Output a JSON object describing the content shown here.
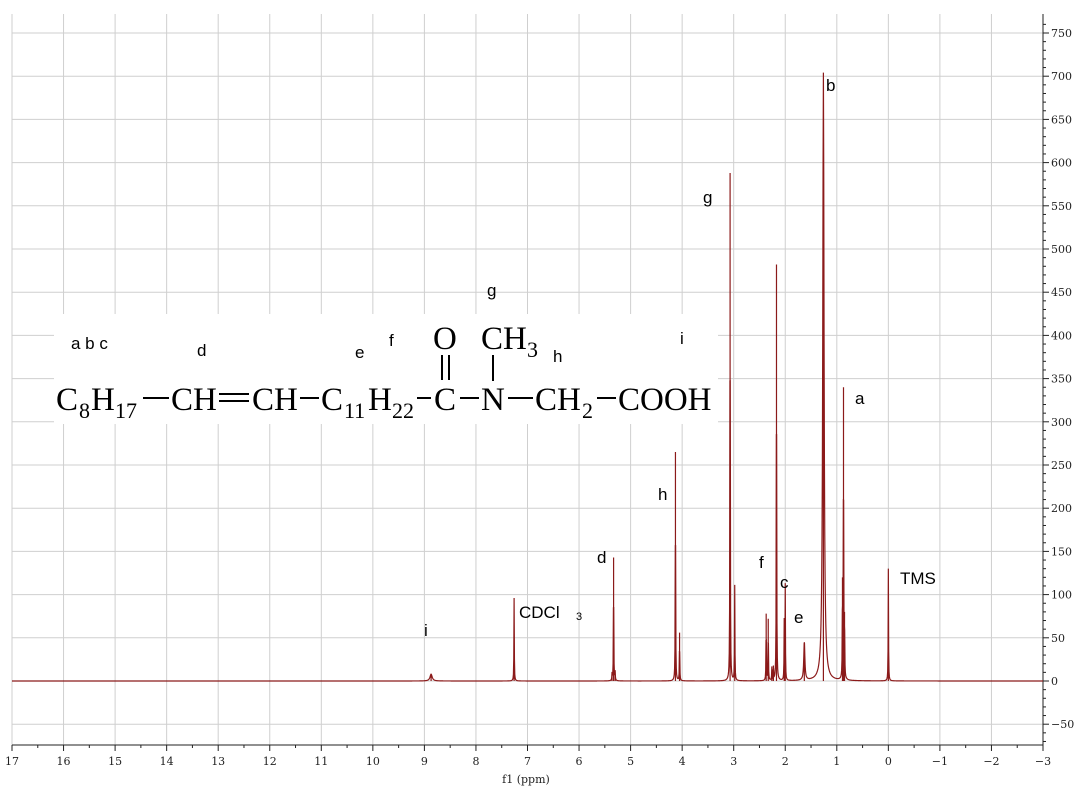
{
  "chart_data": {
    "type": "line",
    "title": "",
    "xlabel": "f1 (ppm)",
    "ylabel": "",
    "xlim": [
      17,
      -3
    ],
    "ylim": [
      -75,
      760
    ],
    "x_reversed": true,
    "grid": true,
    "line_color": "#8b1a1a",
    "x_ticks": [
      "17",
      "16",
      "15",
      "14",
      "13",
      "12",
      "11",
      "10",
      "9",
      "8",
      "7",
      "6",
      "5",
      "4",
      "3",
      "2",
      "1",
      "0",
      "−1",
      "−2",
      "−3"
    ],
    "y_ticks": [
      "−50",
      "0",
      "50",
      "100",
      "150",
      "200",
      "250",
      "300",
      "350",
      "400",
      "450",
      "500",
      "550",
      "600",
      "650",
      "700",
      "750"
    ],
    "series": [
      {
        "peaks": [
          {
            "x": 8.87,
            "y": 8,
            "label": "i"
          },
          {
            "x": 7.26,
            "y": 96,
            "label": "CDCl",
            "label_sub": "3"
          },
          {
            "x": 5.36,
            "y": 8
          },
          {
            "x": 5.33,
            "y": 143,
            "label": "d"
          },
          {
            "x": 5.3,
            "y": 10
          },
          {
            "x": 4.13,
            "y": 265,
            "label": "h"
          },
          {
            "x": 4.05,
            "y": 56
          },
          {
            "x": 3.07,
            "y": 588,
            "label": "g"
          },
          {
            "x": 2.98,
            "y": 110
          },
          {
            "x": 2.37,
            "y": 78
          },
          {
            "x": 2.33,
            "y": 72,
            "label": "f"
          },
          {
            "x": 2.26,
            "y": 15
          },
          {
            "x": 2.23,
            "y": 18
          },
          {
            "x": 2.17,
            "y": 482
          },
          {
            "x": 2.02,
            "y": 68
          },
          {
            "x": 2.0,
            "y": 110,
            "label": "c"
          },
          {
            "x": 1.63,
            "y": 45,
            "label": "e"
          },
          {
            "x": 1.26,
            "y": 704,
            "label": "b"
          },
          {
            "x": 0.89,
            "y": 120
          },
          {
            "x": 0.87,
            "y": 340,
            "label": "a"
          },
          {
            "x": 0.85,
            "y": 80
          },
          {
            "x": 0.0,
            "y": 130,
            "label": "TMS"
          }
        ]
      }
    ]
  },
  "structure": {
    "atom_labels": {
      "abc": "a b c",
      "d": "d",
      "e": "e",
      "f": "f",
      "g": "g",
      "h": "h",
      "i": "i"
    },
    "formula": {
      "c8": "C",
      "c8_sub": "8",
      "h17": "H",
      "h17_sub": "17",
      "ch1": "CH",
      "ch2": "CH",
      "c11": "C",
      "c11_sub": "11",
      "h22": "H",
      "h22_sub": "22",
      "c_carbonyl": "C",
      "o": "O",
      "n": "N",
      "ch3": "CH",
      "ch3_sub": "3",
      "ch2_group": "CH",
      "ch2_sub": "2",
      "cooh": "COOH"
    }
  }
}
